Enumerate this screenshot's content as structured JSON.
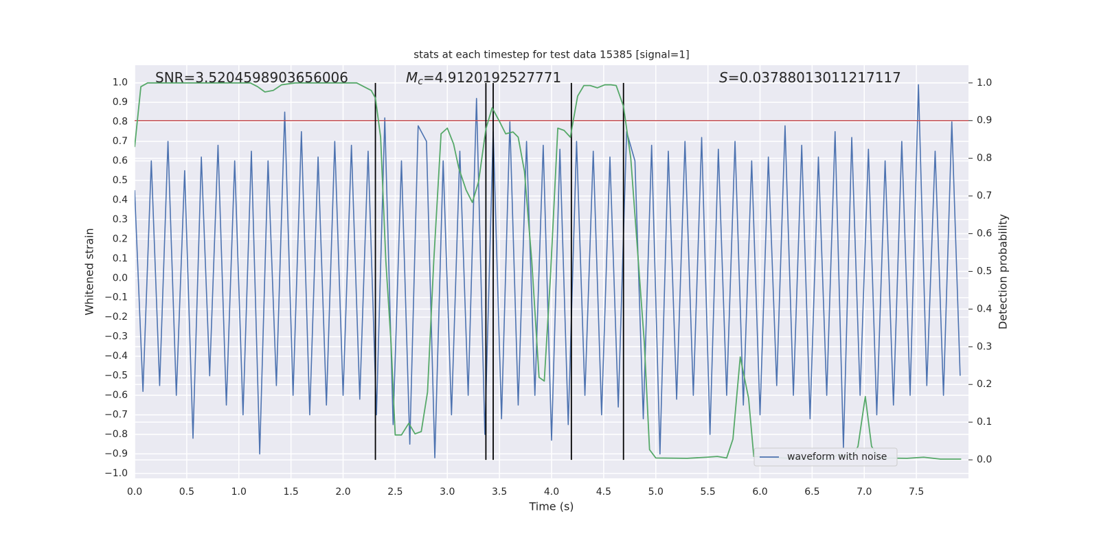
{
  "chart_data": {
    "type": "line",
    "title": "stats at each timestep for test data 15385 [signal=1]",
    "x_label": "Time (s)",
    "y_label": "Whitened strain",
    "y2_label": "Detection probability",
    "annotations": [
      {
        "text": "SNR=3.5204598903656006"
      },
      {
        "symbol": "M",
        "subscript": "c",
        "text": "=4.9120192527771"
      },
      {
        "symbol": "S",
        "text": "=0.03788013011217117"
      }
    ],
    "xlim": [
      0,
      8
    ],
    "xticks": [
      {
        "value": 0,
        "label": "0.0"
      },
      0.5,
      {
        "value": 1,
        "label": "1.0"
      },
      1.5,
      {
        "value": 2,
        "label": "2.0"
      },
      2.5,
      {
        "value": 3,
        "label": "3.0"
      },
      3.5,
      {
        "value": 4,
        "label": "4.0"
      },
      4.5,
      {
        "value": 5,
        "label": "5.0"
      },
      5.5,
      {
        "value": 6,
        "label": "6.0"
      },
      6.5,
      {
        "value": 7,
        "label": "7.0"
      },
      7.5
    ],
    "ylim": [
      -1.025,
      1.09
    ],
    "yticks": [
      {
        "value": -1,
        "label": "−1.0"
      },
      {
        "value": -0.9,
        "label": "−0.9"
      },
      {
        "value": -0.8,
        "label": "−0.8"
      },
      {
        "value": -0.7,
        "label": "−0.7"
      },
      {
        "value": -0.6,
        "label": "−0.6"
      },
      {
        "value": -0.5,
        "label": "−0.5"
      },
      {
        "value": -0.4,
        "label": "−0.4"
      },
      {
        "value": -0.3,
        "label": "−0.3"
      },
      {
        "value": -0.2,
        "label": "−0.2"
      },
      {
        "value": -0.1,
        "label": "−0.1"
      },
      {
        "value": 0,
        "label": "0.0"
      },
      0.1,
      0.2,
      0.3,
      0.4,
      0.5,
      0.6,
      0.7,
      0.8,
      0.9,
      {
        "value": 1,
        "label": "1.0"
      }
    ],
    "y2lim": [
      -0.049,
      1.047
    ],
    "y2ticks": [
      {
        "value": 0,
        "label": "0.0"
      },
      0.1,
      0.2,
      0.3,
      0.4,
      0.5,
      0.6,
      0.7,
      0.8,
      0.9,
      {
        "value": 1,
        "label": "1.0"
      }
    ],
    "grid": true,
    "legend": "lower right",
    "threshold": {
      "value": 0.9,
      "axis": "y2",
      "color": "#c44e52"
    },
    "vlines": {
      "x": [
        2.31,
        3.37,
        3.44,
        4.19,
        4.69
      ],
      "color": "#000000"
    },
    "series": [
      {
        "name": "waveform with noise",
        "color": "#4c72b0",
        "x": [
          0,
          0.08,
          0.16,
          0.24,
          0.32,
          0.4,
          0.48,
          0.56,
          0.64,
          0.72,
          0.8,
          0.88,
          0.96,
          1.04,
          1.12,
          1.2,
          1.28,
          1.36,
          1.44,
          1.52,
          1.6,
          1.68,
          1.76,
          1.84,
          1.92,
          2,
          2.08,
          2.16,
          2.24,
          2.32,
          2.4,
          2.48,
          2.56,
          2.64,
          2.72,
          2.8,
          2.88,
          2.96,
          3.04,
          3.12,
          3.2,
          3.28,
          3.36,
          3.44,
          3.52,
          3.6,
          3.68,
          3.76,
          3.84,
          3.92,
          4,
          4.08,
          4.16,
          4.24,
          4.32,
          4.4,
          4.48,
          4.56,
          4.64,
          4.72,
          4.8,
          4.88,
          4.96,
          5.04,
          5.12,
          5.2,
          5.28,
          5.36,
          5.44,
          5.52,
          5.6,
          5.68,
          5.76,
          5.84,
          5.92,
          6,
          6.08,
          6.16,
          6.24,
          6.32,
          6.4,
          6.48,
          6.56,
          6.64,
          6.72,
          6.8,
          6.88,
          6.96,
          7.04,
          7.12,
          7.2,
          7.28,
          7.36,
          7.44,
          7.52,
          7.6,
          7.68,
          7.76,
          7.84,
          7.92
        ],
        "values": [
          0.45,
          -0.58,
          0.6,
          -0.55,
          0.7,
          -0.6,
          0.55,
          -0.82,
          0.62,
          -0.5,
          0.68,
          -0.65,
          0.6,
          -0.7,
          0.65,
          -0.9,
          0.6,
          -0.55,
          0.85,
          -0.6,
          0.75,
          -0.7,
          0.62,
          -0.65,
          0.7,
          -0.6,
          0.68,
          -0.62,
          0.65,
          -0.7,
          0.82,
          -0.75,
          0.6,
          -0.85,
          0.78,
          0.7,
          -0.92,
          0.6,
          -0.7,
          0.65,
          -0.6,
          0.92,
          -0.8,
          0.75,
          -0.72,
          0.8,
          -0.65,
          0.7,
          -0.6,
          0.68,
          -0.83,
          0.66,
          -0.75,
          0.7,
          -0.6,
          0.65,
          -0.7,
          0.62,
          -0.66,
          0.75,
          0.6,
          -0.72,
          0.68,
          -0.9,
          0.65,
          -0.62,
          0.7,
          -0.6,
          0.72,
          -0.8,
          0.66,
          -0.6,
          0.7,
          -0.65,
          0.6,
          -0.7,
          0.62,
          -0.55,
          0.78,
          -0.6,
          0.68,
          -0.72,
          0.62,
          -0.6,
          0.75,
          -0.87,
          0.72,
          -0.6,
          0.66,
          -0.7,
          0.6,
          -0.65,
          0.7,
          -0.6,
          0.99,
          -0.55,
          0.65,
          -0.6,
          0.8,
          -0.5
        ]
      },
      {
        "color": "#55a868",
        "axis": "y2",
        "x": [
          0,
          0.06,
          0.125,
          1.11,
          1.18,
          1.25,
          1.33,
          1.41,
          1.54,
          2.13,
          2.2,
          2.27,
          2.31,
          2.36,
          2.41,
          2.46,
          2.5,
          2.56,
          2.63,
          2.69,
          2.75,
          2.81,
          2.87,
          2.94,
          3,
          3.06,
          3.11,
          3.18,
          3.24,
          3.3,
          3.37,
          3.43,
          3.5,
          3.56,
          3.63,
          3.68,
          3.74,
          3.81,
          3.88,
          3.93,
          3.99,
          4.06,
          4.12,
          4.18,
          4.25,
          4.31,
          4.37,
          4.44,
          4.51,
          4.57,
          4.62,
          4.69,
          4.76,
          4.82,
          4.89,
          4.94,
          5,
          5.3,
          5.49,
          5.59,
          5.68,
          5.74,
          5.81,
          5.89,
          5.94,
          6.28,
          6.61,
          6.69,
          6.76,
          6.83,
          6.89,
          6.94,
          7.01,
          7.07,
          7.14,
          7.41,
          7.57,
          7.73,
          7.93
        ],
        "values": [
          0.83,
          0.99,
          1,
          1,
          0.99,
          0.976,
          0.98,
          0.995,
          1,
          1,
          0.99,
          0.98,
          0.96,
          0.856,
          0.528,
          0.31,
          0.066,
          0.066,
          0.097,
          0.069,
          0.075,
          0.18,
          0.528,
          0.865,
          0.88,
          0.838,
          0.774,
          0.716,
          0.683,
          0.738,
          0.878,
          0.934,
          0.898,
          0.865,
          0.87,
          0.856,
          0.765,
          0.528,
          0.219,
          0.209,
          0.49,
          0.88,
          0.874,
          0.856,
          0.965,
          0.993,
          0.993,
          0.987,
          0.995,
          0.995,
          0.993,
          0.938,
          0.8,
          0.574,
          0.31,
          0.027,
          0.005,
          0.004,
          0.007,
          0.009,
          0.005,
          0.055,
          0.273,
          0.164,
          0.009,
          0.004,
          0.002,
          0.005,
          0.015,
          0.007,
          0.009,
          0.036,
          0.168,
          0.036,
          0.005,
          0.004,
          0.007,
          0.002,
          0.002
        ]
      }
    ]
  }
}
